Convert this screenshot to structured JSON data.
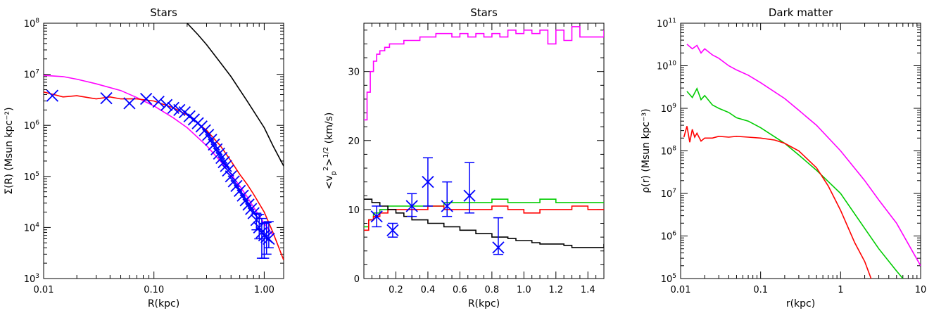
{
  "chart_data": [
    {
      "type": "line",
      "title": "Stars",
      "xlabel": "R(kpc)",
      "ylabel": "Σ(R) (Msun kpc⁻²)",
      "xscale": "log",
      "yscale": "log",
      "xlim": [
        0.01,
        1.5
      ],
      "ylim": [
        1000,
        100000000
      ],
      "xticks": [
        0.01,
        0.1,
        1.0
      ],
      "xtick_labels": [
        "0.01",
        "0.10",
        "1.00"
      ],
      "yticks": [
        1000,
        10000,
        100000,
        1000000,
        10000000,
        100000000
      ],
      "ytick_labels": [
        {
          "base": "10",
          "exp": "3"
        },
        {
          "base": "10",
          "exp": "4"
        },
        {
          "base": "10",
          "exp": "5"
        },
        {
          "base": "10",
          "exp": "6"
        },
        {
          "base": "10",
          "exp": "7"
        },
        {
          "base": "10",
          "exp": "8"
        }
      ],
      "series": [
        {
          "color": "#000000",
          "x": [
            0.2,
            0.25,
            0.3,
            0.4,
            0.5,
            0.7,
            1.0,
            1.2,
            1.5
          ],
          "y": [
            100000000,
            60000000,
            38000000,
            17000000,
            9000000,
            3000000,
            900000,
            400000,
            160000
          ]
        },
        {
          "color": "#ff00ff",
          "x": [
            0.01,
            0.015,
            0.02,
            0.03,
            0.05,
            0.07,
            0.1,
            0.15,
            0.2,
            0.3,
            0.4,
            0.5,
            0.6,
            0.7,
            0.8,
            1.0,
            1.2
          ],
          "y": [
            9500000,
            9000000,
            8000000,
            6500000,
            4800000,
            3500000,
            2400000,
            1400000,
            900000,
            400000,
            200000,
            110000,
            65000,
            40000,
            25000,
            12000,
            7000
          ]
        },
        {
          "color": "#ff0000",
          "x": [
            0.01,
            0.015,
            0.02,
            0.03,
            0.04,
            0.05,
            0.07,
            0.1,
            0.15,
            0.2,
            0.3,
            0.4,
            0.5,
            0.6,
            0.7,
            0.8,
            1.0,
            1.2,
            1.5
          ],
          "y": [
            4500000,
            3600000,
            3800000,
            3300000,
            3600000,
            3300000,
            3300000,
            3000000,
            2200000,
            1600000,
            800000,
            400000,
            200000,
            110000,
            70000,
            45000,
            20000,
            8000,
            2300
          ]
        }
      ],
      "errorbar_series": [
        {
          "color": "#0000ff",
          "marker": "x",
          "x": [
            0.012,
            0.037,
            0.06,
            0.085,
            0.11,
            0.13,
            0.15,
            0.17,
            0.19,
            0.21,
            0.23,
            0.25,
            0.27,
            0.29,
            0.31,
            0.33,
            0.35,
            0.37,
            0.39,
            0.41,
            0.43,
            0.45,
            0.47,
            0.5,
            0.53,
            0.56,
            0.6,
            0.64,
            0.68,
            0.72,
            0.76,
            0.8,
            0.85,
            0.9,
            0.95,
            1.0,
            1.05,
            1.1
          ],
          "y": [
            3800000,
            3400000,
            2700000,
            3300000,
            2900000,
            2500000,
            2200000,
            2000000,
            1800000,
            1500000,
            1300000,
            1100000,
            950000,
            800000,
            650000,
            520000,
            420000,
            340000,
            280000,
            230000,
            190000,
            160000,
            130000,
            100000,
            80000,
            65000,
            52000,
            42000,
            34000,
            28000,
            23000,
            19000,
            14000,
            10000,
            8000,
            7000,
            6500,
            6000
          ],
          "yerr_low": [
            0,
            0,
            0,
            0,
            0,
            0,
            0,
            0,
            0,
            0,
            0,
            0,
            0,
            0,
            0,
            0,
            0,
            0,
            0,
            0,
            0,
            0,
            0,
            0,
            0,
            0,
            0,
            0,
            0,
            0,
            0,
            0,
            5000,
            4000,
            5500,
            4500,
            3500,
            2000
          ],
          "yerr_high": [
            0,
            0,
            0,
            0,
            0,
            0,
            0,
            0,
            0,
            0,
            0,
            0,
            0,
            0,
            0,
            0,
            0,
            0,
            0,
            0,
            0,
            0,
            0,
            0,
            0,
            0,
            0,
            0,
            0,
            0,
            0,
            0,
            5000,
            8000,
            7000,
            5000,
            6000,
            7000
          ]
        }
      ]
    },
    {
      "type": "line",
      "title": "Stars",
      "xlabel": "R(kpc)",
      "ylabel": "<v_p^2>^1/2 (km/s)",
      "ylabel_parts": {
        "open": "<v",
        "sub": "p",
        "sup1": "2",
        "close": ">",
        "sup2": "1/2",
        "unit": " (km/s)"
      },
      "xscale": "linear",
      "yscale": "linear",
      "xlim": [
        0.0,
        1.5
      ],
      "ylim": [
        0,
        37
      ],
      "xticks": [
        0.2,
        0.4,
        0.6,
        0.8,
        1.0,
        1.2,
        1.4
      ],
      "xtick_labels": [
        "0.2",
        "0.4",
        "0.6",
        "0.8",
        "1.0",
        "1.2",
        "1.4"
      ],
      "yticks": [
        0,
        10,
        20,
        30
      ],
      "ytick_labels": [
        "0",
        "10",
        "20",
        "30"
      ],
      "series": [
        {
          "color": "#ff00ff",
          "step": true,
          "x": [
            0.0,
            0.02,
            0.04,
            0.06,
            0.08,
            0.1,
            0.13,
            0.16,
            0.2,
            0.25,
            0.3,
            0.35,
            0.4,
            0.45,
            0.5,
            0.55,
            0.6,
            0.65,
            0.7,
            0.75,
            0.8,
            0.85,
            0.9,
            0.95,
            1.0,
            1.05,
            1.1,
            1.15,
            1.2,
            1.25,
            1.3,
            1.35,
            1.4,
            1.45,
            1.5
          ],
          "y": [
            23,
            27,
            30,
            31.5,
            32.5,
            33,
            33.5,
            34,
            34,
            34.5,
            34.5,
            35,
            35,
            35.5,
            35.5,
            35,
            35.5,
            35,
            35.5,
            35,
            35.5,
            35,
            36,
            35.5,
            36,
            35.5,
            36,
            34,
            36,
            34.5,
            36.5,
            35,
            35,
            35,
            36
          ]
        },
        {
          "color": "#00cc00",
          "step": true,
          "x": [
            0.0,
            0.03,
            0.06,
            0.1,
            0.15,
            0.2,
            0.3,
            0.4,
            0.5,
            0.6,
            0.7,
            0.8,
            0.9,
            1.0,
            1.1,
            1.2,
            1.3,
            1.4,
            1.5
          ],
          "y": [
            7.5,
            8.5,
            9.5,
            10,
            10.5,
            10.5,
            10.5,
            10.5,
            11,
            11,
            11,
            11.5,
            11,
            11,
            11.5,
            11,
            11,
            11,
            11
          ]
        },
        {
          "color": "#ff0000",
          "step": true,
          "x": [
            0.0,
            0.03,
            0.06,
            0.1,
            0.15,
            0.2,
            0.3,
            0.4,
            0.5,
            0.6,
            0.7,
            0.8,
            0.9,
            1.0,
            1.1,
            1.2,
            1.3,
            1.4,
            1.5
          ],
          "y": [
            7,
            8.5,
            9,
            9.5,
            10,
            10,
            10,
            10.5,
            10,
            10,
            10,
            10.5,
            10,
            9.5,
            10,
            10,
            10.5,
            10,
            10
          ]
        },
        {
          "color": "#000000",
          "step": true,
          "x": [
            0.0,
            0.05,
            0.1,
            0.15,
            0.2,
            0.25,
            0.3,
            0.35,
            0.4,
            0.45,
            0.5,
            0.55,
            0.6,
            0.65,
            0.7,
            0.75,
            0.8,
            0.85,
            0.9,
            0.95,
            1.0,
            1.05,
            1.1,
            1.15,
            1.2,
            1.25,
            1.3,
            1.35,
            1.4,
            1.45,
            1.5
          ],
          "y": [
            11.5,
            11,
            10.5,
            10,
            9.5,
            9,
            8.5,
            8.5,
            8,
            8,
            7.5,
            7.5,
            7,
            7,
            6.5,
            6.5,
            6,
            6,
            5.8,
            5.5,
            5.5,
            5.2,
            5,
            5,
            5,
            4.8,
            4.5,
            4.5,
            4.5,
            4.5,
            5
          ]
        }
      ],
      "errorbar_series": [
        {
          "color": "#0000ff",
          "marker": "x",
          "x": [
            0.08,
            0.18,
            0.3,
            0.4,
            0.52,
            0.66,
            0.84
          ],
          "y": [
            9,
            7,
            10.5,
            14,
            10.5,
            12,
            4.5
          ],
          "yerr_low": [
            1.5,
            1,
            1.5,
            3.5,
            1.5,
            2.5,
            1
          ],
          "yerr_high": [
            1.5,
            1,
            1.8,
            3.5,
            3.5,
            4.8,
            4.3
          ]
        }
      ]
    },
    {
      "type": "line",
      "title": "Dark matter",
      "xlabel": "r(kpc)",
      "ylabel": "ρ(r) (Msun kpc⁻³)",
      "xscale": "log",
      "yscale": "log",
      "xlim": [
        0.01,
        10
      ],
      "ylim": [
        100000,
        100000000000
      ],
      "xticks": [
        0.01,
        0.1,
        1,
        10
      ],
      "xtick_labels": [
        "0.01",
        "0.1",
        "1",
        "10"
      ],
      "yticks": [
        100000,
        1000000,
        10000000,
        100000000,
        1000000000,
        10000000000,
        100000000000
      ],
      "ytick_labels": [
        {
          "base": "10",
          "exp": "5"
        },
        {
          "base": "10",
          "exp": "6"
        },
        {
          "base": "10",
          "exp": "7"
        },
        {
          "base": "10",
          "exp": "8"
        },
        {
          "base": "10",
          "exp": "9"
        },
        {
          "base": "10",
          "exp": "10"
        },
        {
          "base": "10",
          "exp": "11"
        }
      ],
      "series": [
        {
          "color": "#ff00ff",
          "x": [
            0.012,
            0.014,
            0.016,
            0.018,
            0.02,
            0.025,
            0.03,
            0.04,
            0.05,
            0.07,
            0.1,
            0.2,
            0.3,
            0.5,
            1,
            2,
            3,
            5,
            10
          ],
          "y": [
            32000000000,
            25000000000,
            30000000000,
            20000000000,
            25000000000,
            18000000000,
            15000000000,
            10000000000,
            8000000000,
            6000000000,
            4000000000,
            1700000000,
            900000000,
            400000000,
            100000000,
            20000000,
            7000000,
            2000000,
            200000
          ]
        },
        {
          "color": "#00cc00",
          "x": [
            0.012,
            0.014,
            0.016,
            0.018,
            0.02,
            0.025,
            0.03,
            0.04,
            0.05,
            0.07,
            0.1,
            0.2,
            0.3,
            0.5,
            1,
            2,
            3,
            5,
            6
          ],
          "y": [
            2500000000,
            1800000000,
            2900000000,
            1600000000,
            2000000000,
            1200000000,
            1000000000,
            800000000,
            600000000,
            500000000,
            350000000,
            150000000,
            80000000,
            35000000,
            10000000,
            1500000,
            500000,
            150000,
            100000
          ]
        },
        {
          "color": "#ff0000",
          "x": [
            0.011,
            0.012,
            0.013,
            0.014,
            0.015,
            0.016,
            0.018,
            0.02,
            0.025,
            0.03,
            0.04,
            0.05,
            0.07,
            0.1,
            0.15,
            0.2,
            0.3,
            0.5,
            0.7,
            1,
            1.5,
            2,
            2.4
          ],
          "y": [
            210000000,
            380000000,
            160000000,
            320000000,
            210000000,
            260000000,
            170000000,
            200000000,
            200000000,
            220000000,
            210000000,
            220000000,
            210000000,
            200000000,
            180000000,
            150000000,
            100000000,
            40000000,
            15000000,
            4000000,
            700000,
            250000,
            100000
          ]
        }
      ]
    }
  ]
}
